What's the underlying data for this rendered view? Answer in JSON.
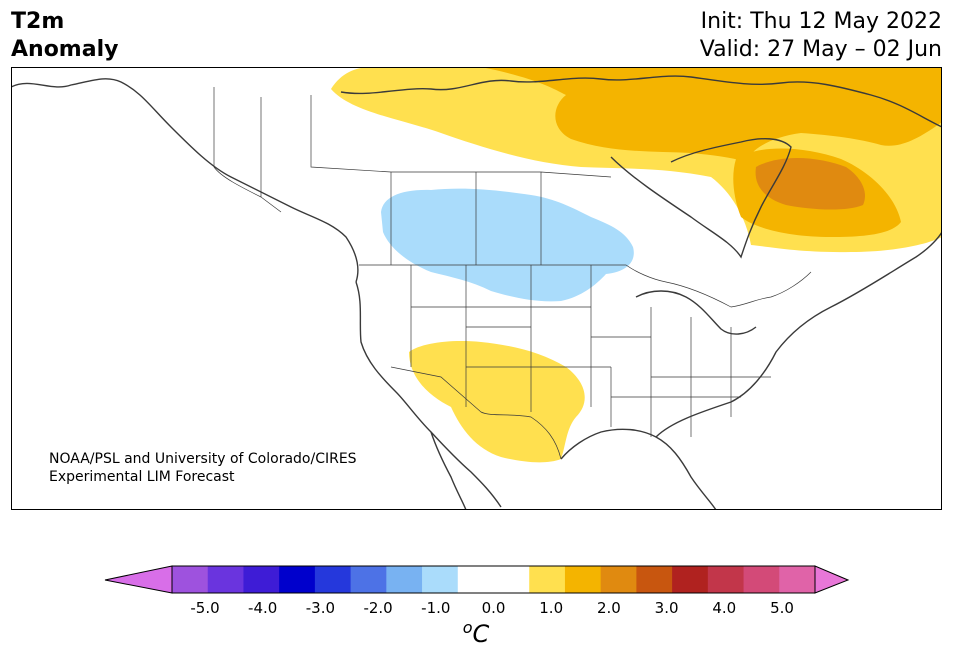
{
  "title": {
    "left_line1": "T2m",
    "left_line2": "Anomaly",
    "right_line1": "Init: Thu 12 May 2022",
    "right_line2": "Valid: 27 May – 02 Jun"
  },
  "credit": {
    "line1": "NOAA/PSL and University of Colorado/CIRES",
    "line2": "Experimental LIM Forecast"
  },
  "colorbar": {
    "unit_base": "o",
    "unit_var": "C",
    "colors": [
      "#d86ee8",
      "#9e52de",
      "#6a34de",
      "#3e1cd6",
      "#0000cc",
      "#2538dc",
      "#4d72e6",
      "#78b2f2",
      "#aadcfb",
      "#ffffff",
      "#ffffff",
      "#ffe04f",
      "#f4b400",
      "#e08a10",
      "#c8560f",
      "#b0221f",
      "#c2364a",
      "#d34a78",
      "#e063a8",
      "#e877d8"
    ],
    "tick_labels": [
      "-5.0",
      "-4.0",
      "-3.0",
      "-2.0",
      "-1.0",
      "0.0",
      "1.0",
      "2.0",
      "3.0",
      "4.0",
      "5.0"
    ]
  },
  "legend_colors": {
    "light_blue": "#aadcfb",
    "yellow": "#ffe04f",
    "orange": "#f4b400",
    "dark_orange": "#e08a10"
  }
}
